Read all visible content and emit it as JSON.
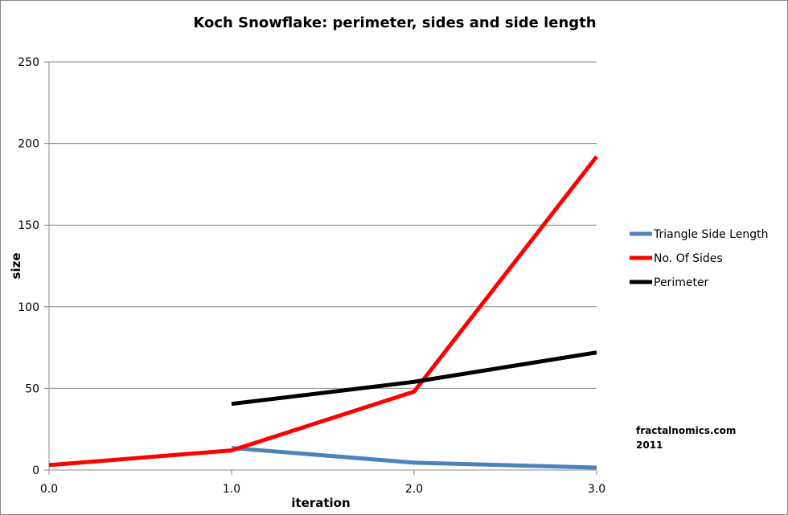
{
  "chart_data": {
    "type": "line",
    "title": "Koch Snowflake: perimeter, sides and side length",
    "xlabel": "iteration",
    "ylabel": "size",
    "xlim": [
      0,
      3
    ],
    "ylim": [
      0,
      250
    ],
    "x_ticks": [
      "0.0",
      "1.0",
      "2.0",
      "3.0"
    ],
    "y_ticks": [
      "0",
      "50",
      "100",
      "150",
      "200",
      "250"
    ],
    "grid": "horizontal",
    "legend_position": "right",
    "series": [
      {
        "name": "Triangle Side Length",
        "color": "#4f81bd",
        "x": [
          1,
          2,
          3
        ],
        "y": [
          13.5,
          4.5,
          1.5
        ]
      },
      {
        "name": "No. Of Sides",
        "color": "#ff0000",
        "x": [
          0,
          1,
          2,
          3
        ],
        "y": [
          3,
          12,
          48,
          192
        ]
      },
      {
        "name": "Perimeter",
        "color": "#000000",
        "x": [
          1,
          2,
          3
        ],
        "y": [
          40.5,
          54,
          72
        ]
      }
    ],
    "annotation": {
      "line1": "fractalnomics.com",
      "line2": "2011"
    }
  }
}
